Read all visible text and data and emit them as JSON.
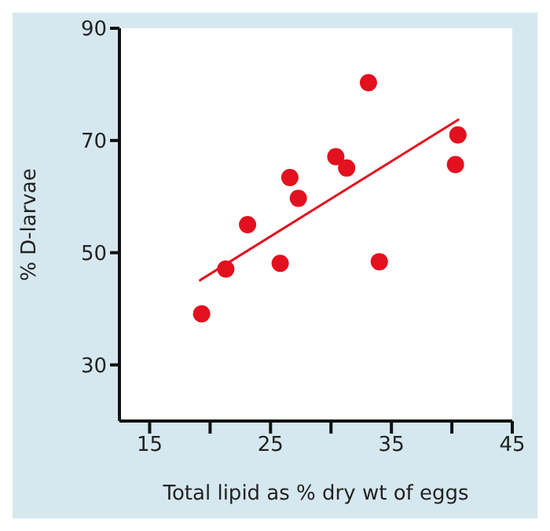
{
  "chart_data": {
    "type": "scatter",
    "xlabel": "Total lipid as % dry wt of eggs",
    "ylabel": "% D-larvae",
    "xlim": [
      12.5,
      45
    ],
    "xticks": [
      15,
      {
        "value": 20,
        "label": null
      },
      25,
      {
        "value": 30,
        "label": null
      },
      35,
      {
        "value": 40,
        "label": null
      },
      45
    ],
    "ylim": [
      20,
      90
    ],
    "yticks": [
      30,
      50,
      70,
      90
    ],
    "grid": false,
    "series": [
      {
        "color": "#e3101f",
        "marker": "circle",
        "x": [
          19.3,
          21.3,
          23.1,
          25.8,
          26.6,
          27.3,
          30.4,
          31.3,
          33.1,
          34.0,
          40.3,
          40.5
        ],
        "values": [
          39.1,
          47.1,
          55.0,
          48.1,
          63.4,
          59.7,
          67.1,
          65.1,
          80.3,
          48.4,
          65.7,
          71.0
        ]
      },
      {
        "type": "line",
        "color": "#e3101f",
        "marker": "none",
        "x": [
          19.1,
          40.6
        ],
        "values": [
          45.0,
          73.8
        ]
      }
    ]
  }
}
